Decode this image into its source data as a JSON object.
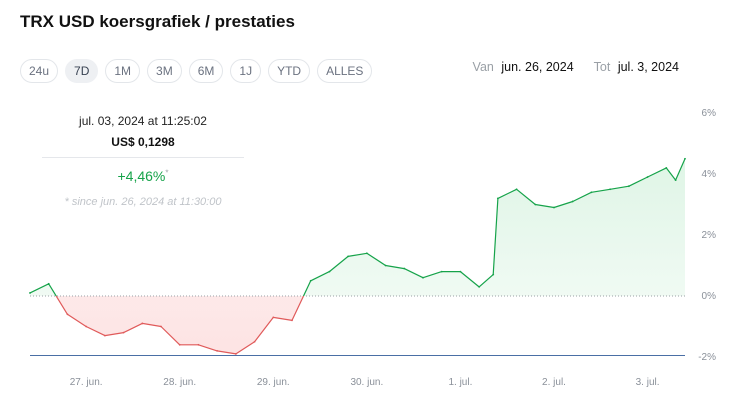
{
  "title": "TRX USD koersgrafiek / prestaties",
  "ranges": [
    "24u",
    "7D",
    "1M",
    "3M",
    "6M",
    "1J",
    "YTD",
    "ALLES"
  ],
  "active_range": "7D",
  "daterange": {
    "from_label": "Van",
    "from_value": "jun. 26, 2024",
    "to_label": "Tot",
    "to_value": "jul. 3, 2024"
  },
  "tooltip": {
    "datetime": "jul. 03, 2024 at 11:25:02",
    "price": "US$ 0,1298",
    "change": "+4,46%",
    "change_marker": "*",
    "since": "* since jun. 26, 2024 at 11:30:00"
  },
  "colors": {
    "up": "#16a34a",
    "up_fill": "#dff5e6",
    "down": "#e05a5a",
    "down_fill": "#fde3e3",
    "baseline": "#9aa0a6",
    "min_line": "#4a6fa5"
  },
  "chart_data": {
    "type": "area",
    "ylim": [
      -2,
      6
    ],
    "y_ticks": [
      6,
      4,
      2,
      0,
      -2
    ],
    "y_tick_labels": [
      "6%",
      "4%",
      "2%",
      "0%",
      "-2%"
    ],
    "baseline": 0,
    "min_line": -1.95,
    "x_ticks": [
      1,
      2,
      3,
      4,
      5,
      6,
      7
    ],
    "x_tick_labels": [
      "27. jun.",
      "28. jun.",
      "29. jun.",
      "30. jun.",
      "1. jul.",
      "2. jul.",
      "3. jul."
    ],
    "xlim": [
      0.4,
      7.4
    ],
    "x": [
      0.4,
      0.6,
      0.8,
      1.0,
      1.2,
      1.4,
      1.6,
      1.8,
      2.0,
      2.2,
      2.4,
      2.6,
      2.8,
      3.0,
      3.2,
      3.4,
      3.6,
      3.8,
      4.0,
      4.2,
      4.4,
      4.6,
      4.8,
      5.0,
      5.2,
      5.35,
      5.4,
      5.6,
      5.8,
      6.0,
      6.2,
      6.4,
      6.6,
      6.8,
      7.0,
      7.2,
      7.3,
      7.4
    ],
    "y": [
      0.1,
      0.4,
      -0.6,
      -1.0,
      -1.3,
      -1.2,
      -0.9,
      -1.0,
      -1.6,
      -1.6,
      -1.8,
      -1.9,
      -1.5,
      -0.7,
      -0.8,
      0.5,
      0.8,
      1.3,
      1.4,
      1.0,
      0.9,
      0.6,
      0.8,
      0.8,
      0.3,
      0.7,
      3.2,
      3.5,
      3.0,
      2.9,
      3.1,
      3.4,
      3.5,
      3.6,
      3.9,
      4.2,
      3.8,
      4.5
    ]
  }
}
